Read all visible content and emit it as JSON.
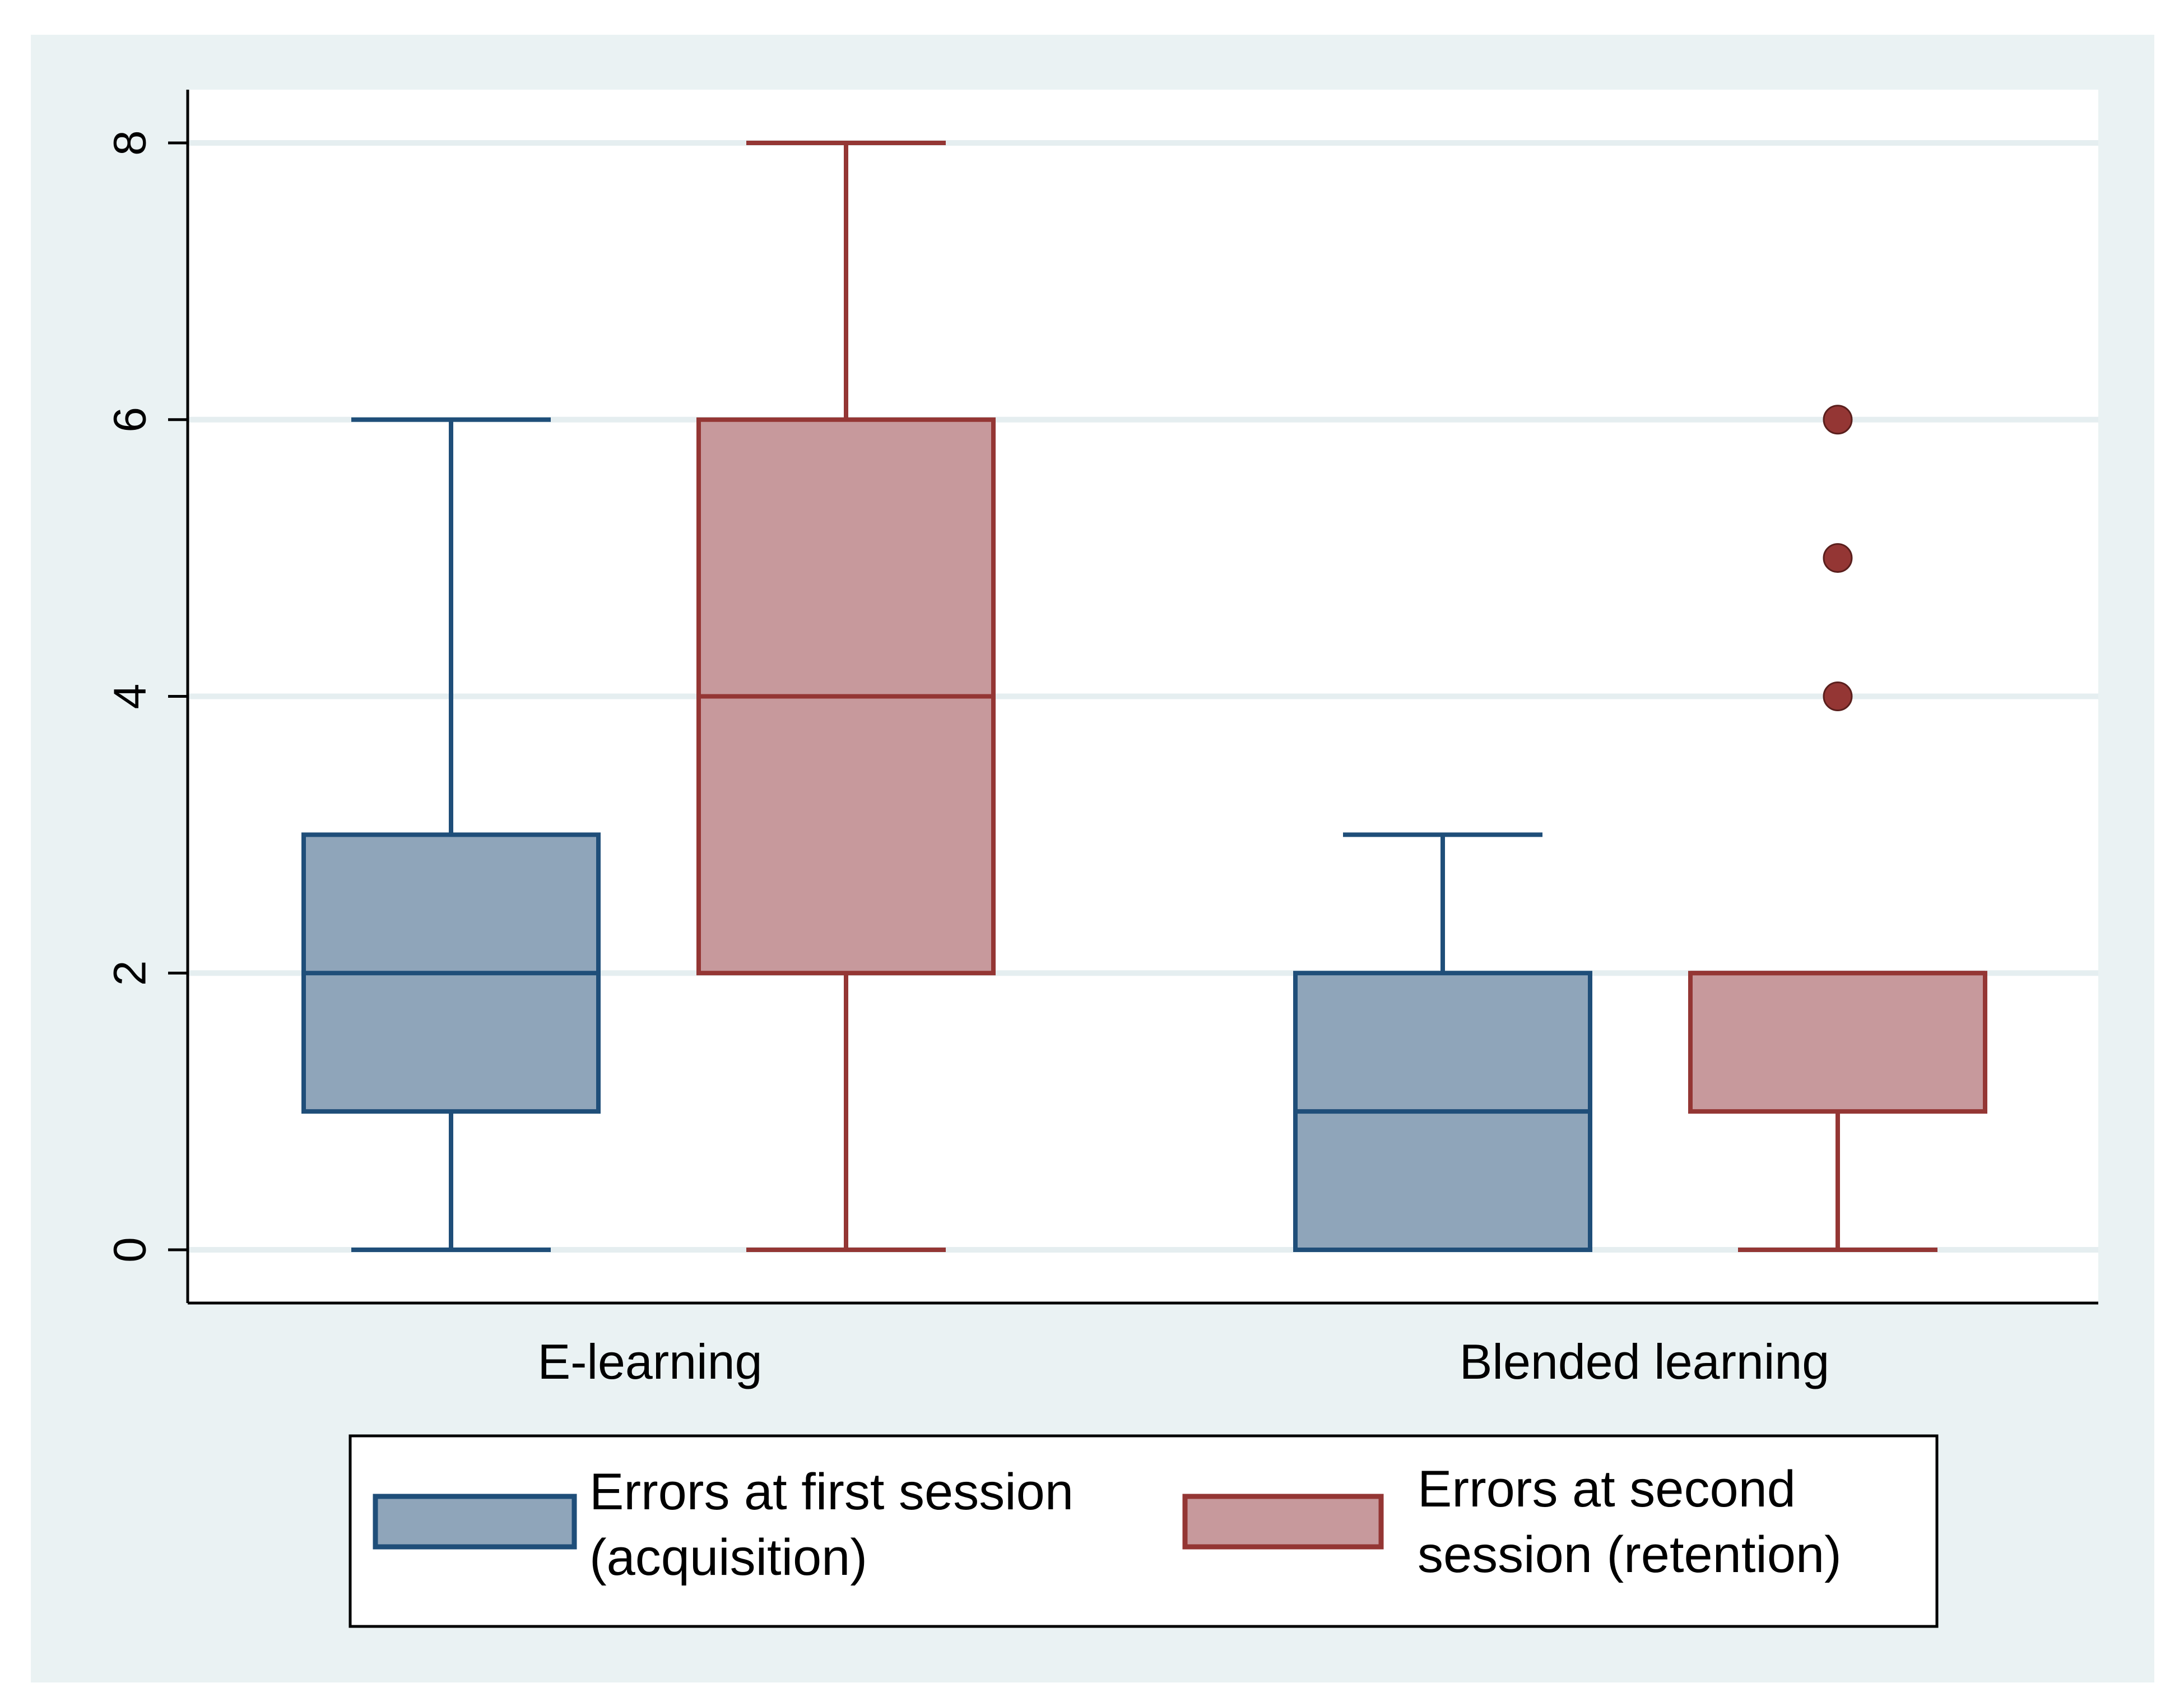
{
  "chart_data": {
    "type": "box",
    "title": "",
    "xlabel": "",
    "ylabel": "",
    "ylim": [
      0,
      8
    ],
    "yticks": [
      0,
      2,
      4,
      6,
      8
    ],
    "ytick_labels": [
      "0",
      "2",
      "4",
      "6",
      "8"
    ],
    "grid": true,
    "categories": [
      "E-learning",
      "Blended learning"
    ],
    "series": [
      {
        "name": "Errors at first session (acquisition)",
        "legend_lines": [
          "Errors at first session",
          "(acquisition)"
        ],
        "fill": "#8fa5ba",
        "stroke": "#1f4e79",
        "boxes": [
          {
            "category": "E-learning",
            "min": 0,
            "q1": 1,
            "median": 2,
            "q3": 3,
            "max": 6,
            "outliers": []
          },
          {
            "category": "Blended learning",
            "min": 0,
            "q1": 0,
            "median": 1,
            "q3": 2,
            "max": 3,
            "outliers": []
          }
        ]
      },
      {
        "name": "Errors at second session (retention)",
        "legend_lines": [
          "Errors at second",
          "session (retention)"
        ],
        "fill": "#c7999c",
        "stroke": "#943634",
        "boxes": [
          {
            "category": "E-learning",
            "min": 0,
            "q1": 2,
            "median": 4,
            "q3": 6,
            "max": 8,
            "outliers": []
          },
          {
            "category": "Blended learning",
            "min": 0,
            "q1": 1,
            "median": 2,
            "q3": 2,
            "max": 2,
            "outliers": [
              4,
              5,
              6
            ]
          }
        ]
      }
    ],
    "legend_position": "bottom"
  },
  "colors": {
    "outer_background": "#eaf2f3",
    "plot_background": "#ffffff",
    "gridline": "#e5eef0",
    "axis": "#000000"
  }
}
